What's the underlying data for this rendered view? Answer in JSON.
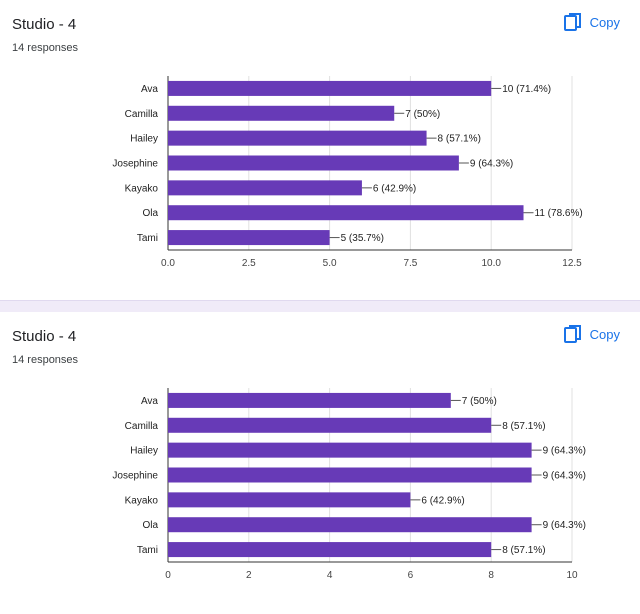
{
  "cards": [
    {
      "title": "Studio - 4",
      "subtitle": "14 responses",
      "copy_label": "Copy",
      "copy_icon": "copy-icon"
    },
    {
      "title": "Studio - 4",
      "subtitle": "14 responses",
      "copy_label": "Copy",
      "copy_icon": "copy-icon"
    }
  ],
  "colors": {
    "bar": "#673ab7",
    "accent": "#1a73e8",
    "separator": "#f0ebf8"
  },
  "chart_data": [
    {
      "type": "bar",
      "orientation": "horizontal",
      "categories": [
        "Ava",
        "Camilla",
        "Hailey",
        "Josephine",
        "Kayako",
        "Ola",
        "Tami"
      ],
      "values": [
        10,
        7,
        8,
        9,
        6,
        11,
        5
      ],
      "value_labels": [
        "10 (71.4%)",
        "7 (50%)",
        "8 (57.1%)",
        "9 (64.3%)",
        "6 (42.9%)",
        "11 (78.6%)",
        "5 (35.7%)"
      ],
      "xlim": [
        0,
        12.5
      ],
      "xticks": [
        "0.0",
        "2.5",
        "5.0",
        "7.5",
        "10.0",
        "12.5"
      ],
      "xtick_values": [
        0,
        2.5,
        5,
        7.5,
        10,
        12.5
      ],
      "grid": true
    },
    {
      "type": "bar",
      "orientation": "horizontal",
      "categories": [
        "Ava",
        "Camilla",
        "Hailey",
        "Josephine",
        "Kayako",
        "Ola",
        "Tami"
      ],
      "values": [
        7,
        8,
        9,
        9,
        6,
        9,
        8
      ],
      "value_labels": [
        "7 (50%)",
        "8 (57.1%)",
        "9 (64.3%)",
        "9 (64.3%)",
        "6 (42.9%)",
        "9 (64.3%)",
        "8 (57.1%)"
      ],
      "xlim": [
        0,
        10
      ],
      "xticks": [
        "0",
        "2",
        "4",
        "6",
        "8",
        "10"
      ],
      "xtick_values": [
        0,
        2,
        4,
        6,
        8,
        10
      ],
      "grid": true
    }
  ]
}
